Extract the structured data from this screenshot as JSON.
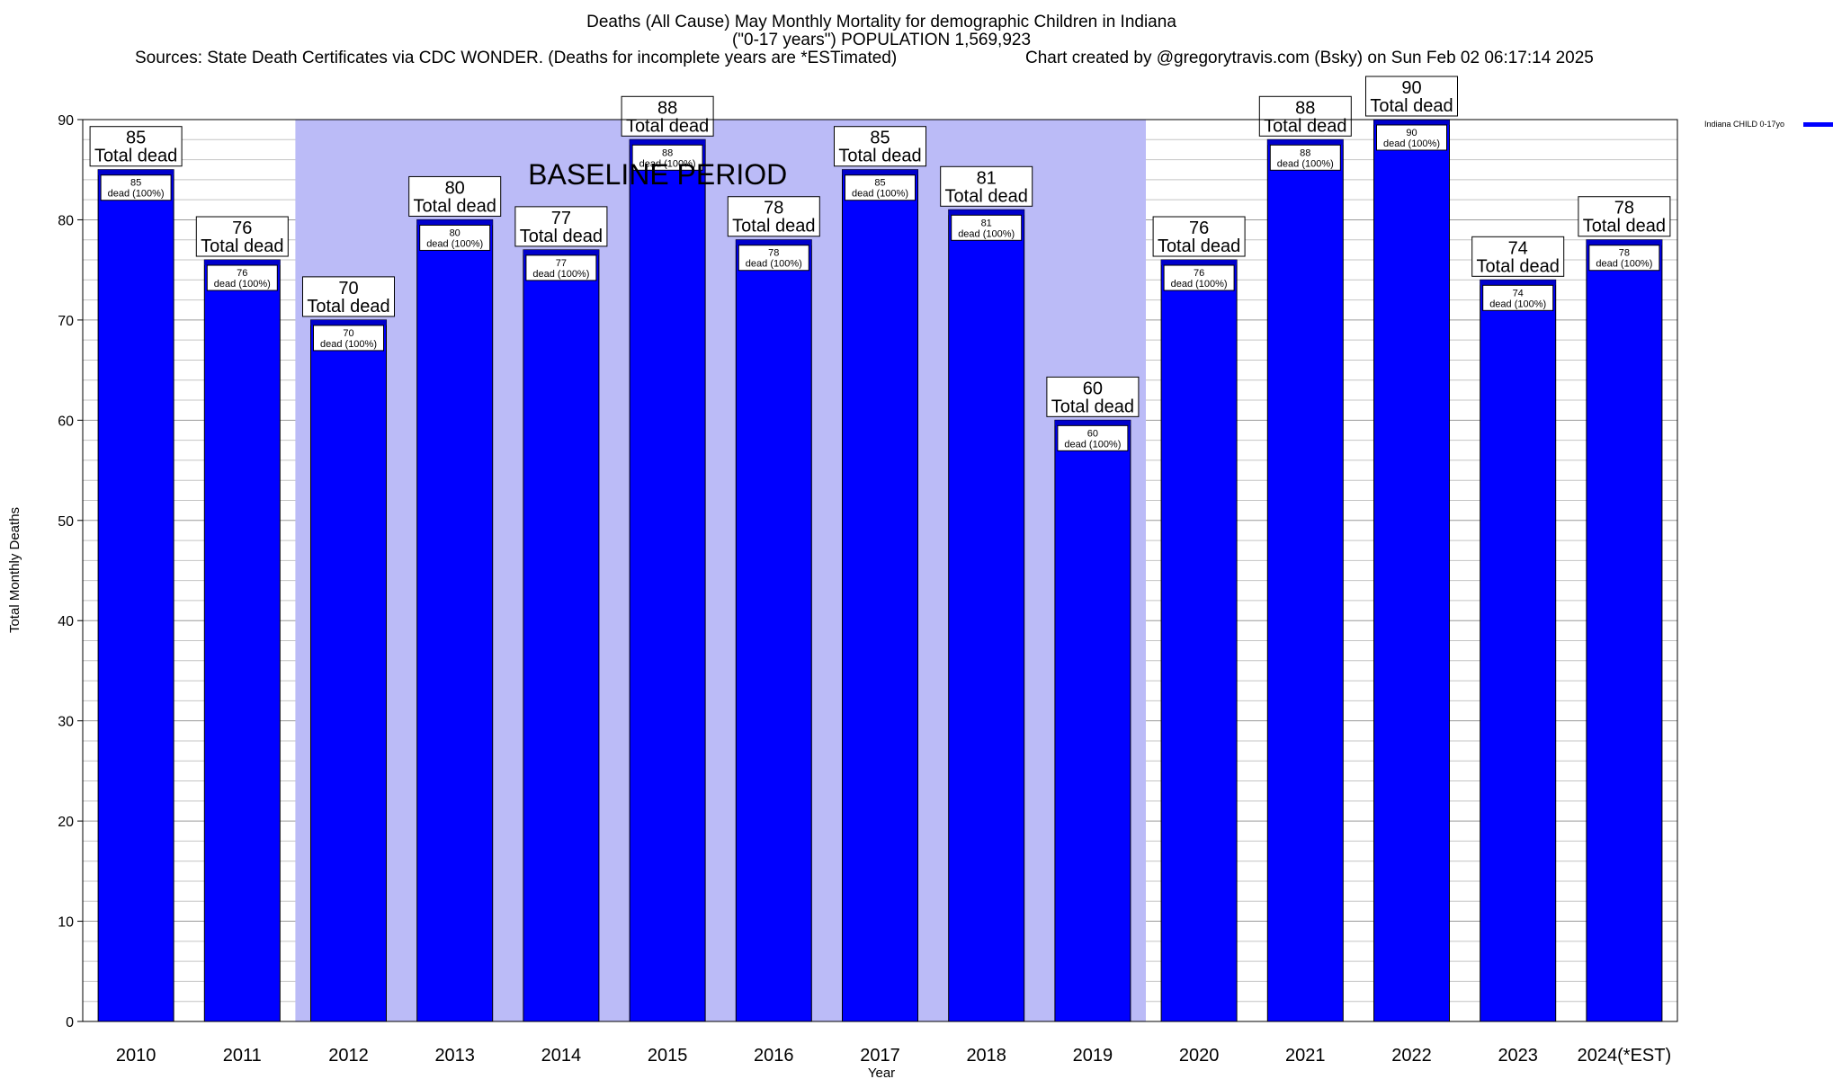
{
  "chart_data": {
    "type": "bar",
    "title": "Deaths (All Cause) May Monthly Mortality for demographic Children in Indiana",
    "subtitle": "(\"0-17 years\") POPULATION 1,569,923",
    "sources": "Sources: State Death Certificates via CDC WONDER. (Deaths for incomplete years are *ESTimated)",
    "credit": "Chart created by @gregorytravis.com (Bsky) on Sun Feb 02 06:17:14 2025",
    "xlabel": "Year",
    "ylabel": "Total Monthly Deaths",
    "ylim": [
      0,
      90
    ],
    "y_ticks": [
      0,
      10,
      20,
      30,
      40,
      50,
      60,
      70,
      80,
      90
    ],
    "categories": [
      "2010",
      "2011",
      "2012",
      "2013",
      "2014",
      "2015",
      "2016",
      "2017",
      "2018",
      "2019",
      "2020",
      "2021",
      "2022",
      "2023",
      "2024(*EST)"
    ],
    "series": [
      {
        "name": "Indiana CHILD 0-17yo",
        "color": "#0000ff",
        "values": [
          85,
          76,
          70,
          80,
          77,
          88,
          78,
          85,
          81,
          60,
          76,
          88,
          90,
          74,
          78
        ]
      }
    ],
    "bar_top_label_suffix": "Total dead",
    "bar_inner_label_suffix": "dead (100%)",
    "baseline_period": {
      "label": "BASELINE PERIOD",
      "start_category": "2012",
      "end_category": "2019",
      "color": "#bbbbf7"
    },
    "grid": true,
    "legend_position": "top-right"
  }
}
